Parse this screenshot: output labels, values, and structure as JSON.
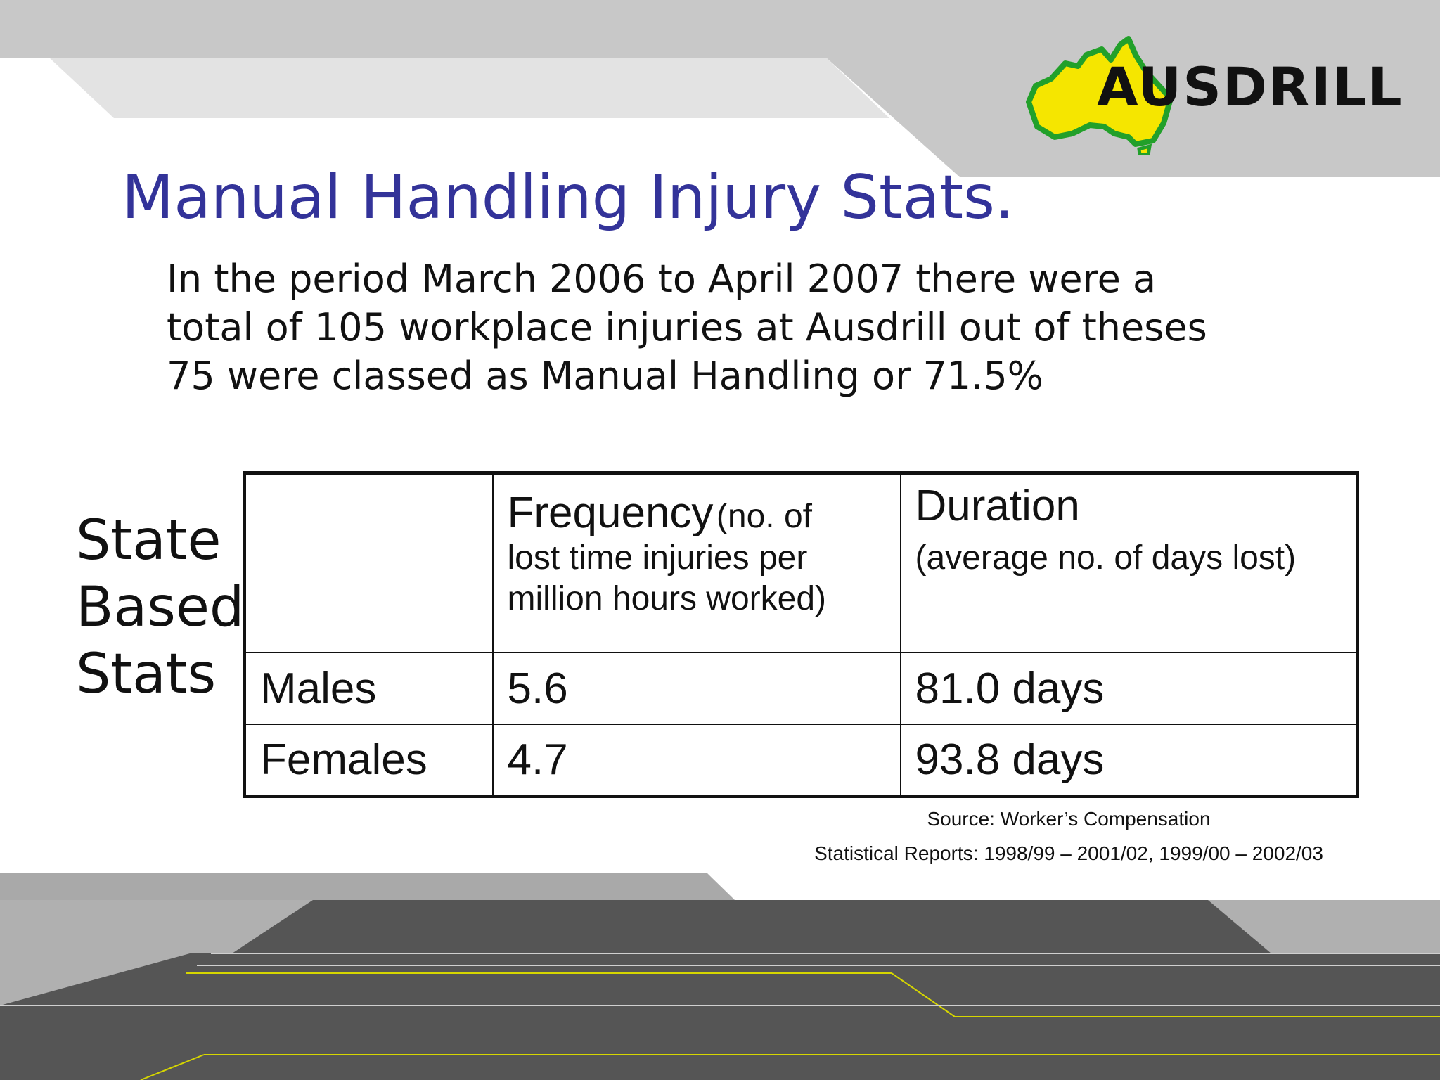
{
  "logo": {
    "text": "AUSDRILL"
  },
  "slide": {
    "title": "Manual Handling Injury Stats.",
    "intro": "In the period March 2006 to April 2007 there were a total of 105 workplace injuries at Ausdrill out of theses 75 were classed as Manual Handling or 71.5%",
    "side_label": [
      "State",
      "Based",
      "Stats"
    ]
  },
  "table": {
    "header": {
      "frequency_main": "Frequency",
      "frequency_note_1": "(no. of",
      "frequency_note_2": "lost time injuries per million hours worked)",
      "duration_main": "Duration",
      "duration_note": "(average no. of days lost)"
    },
    "rows": [
      {
        "label": "Males",
        "frequency": "5.6",
        "duration": "81.0 days"
      },
      {
        "label": "Females",
        "frequency": "4.7",
        "duration": "93.8 days"
      }
    ]
  },
  "source": {
    "line1": "Source: Worker’s Compensation",
    "line2": "Statistical Reports: 1998/99 – 2001/02, 1999/00 – 2002/03"
  },
  "colors": {
    "title": "#333399",
    "band_light": "#c8c8c8",
    "band_dark": "#555555",
    "logo_yellow": "#f5e600",
    "logo_green": "#22a02a"
  }
}
